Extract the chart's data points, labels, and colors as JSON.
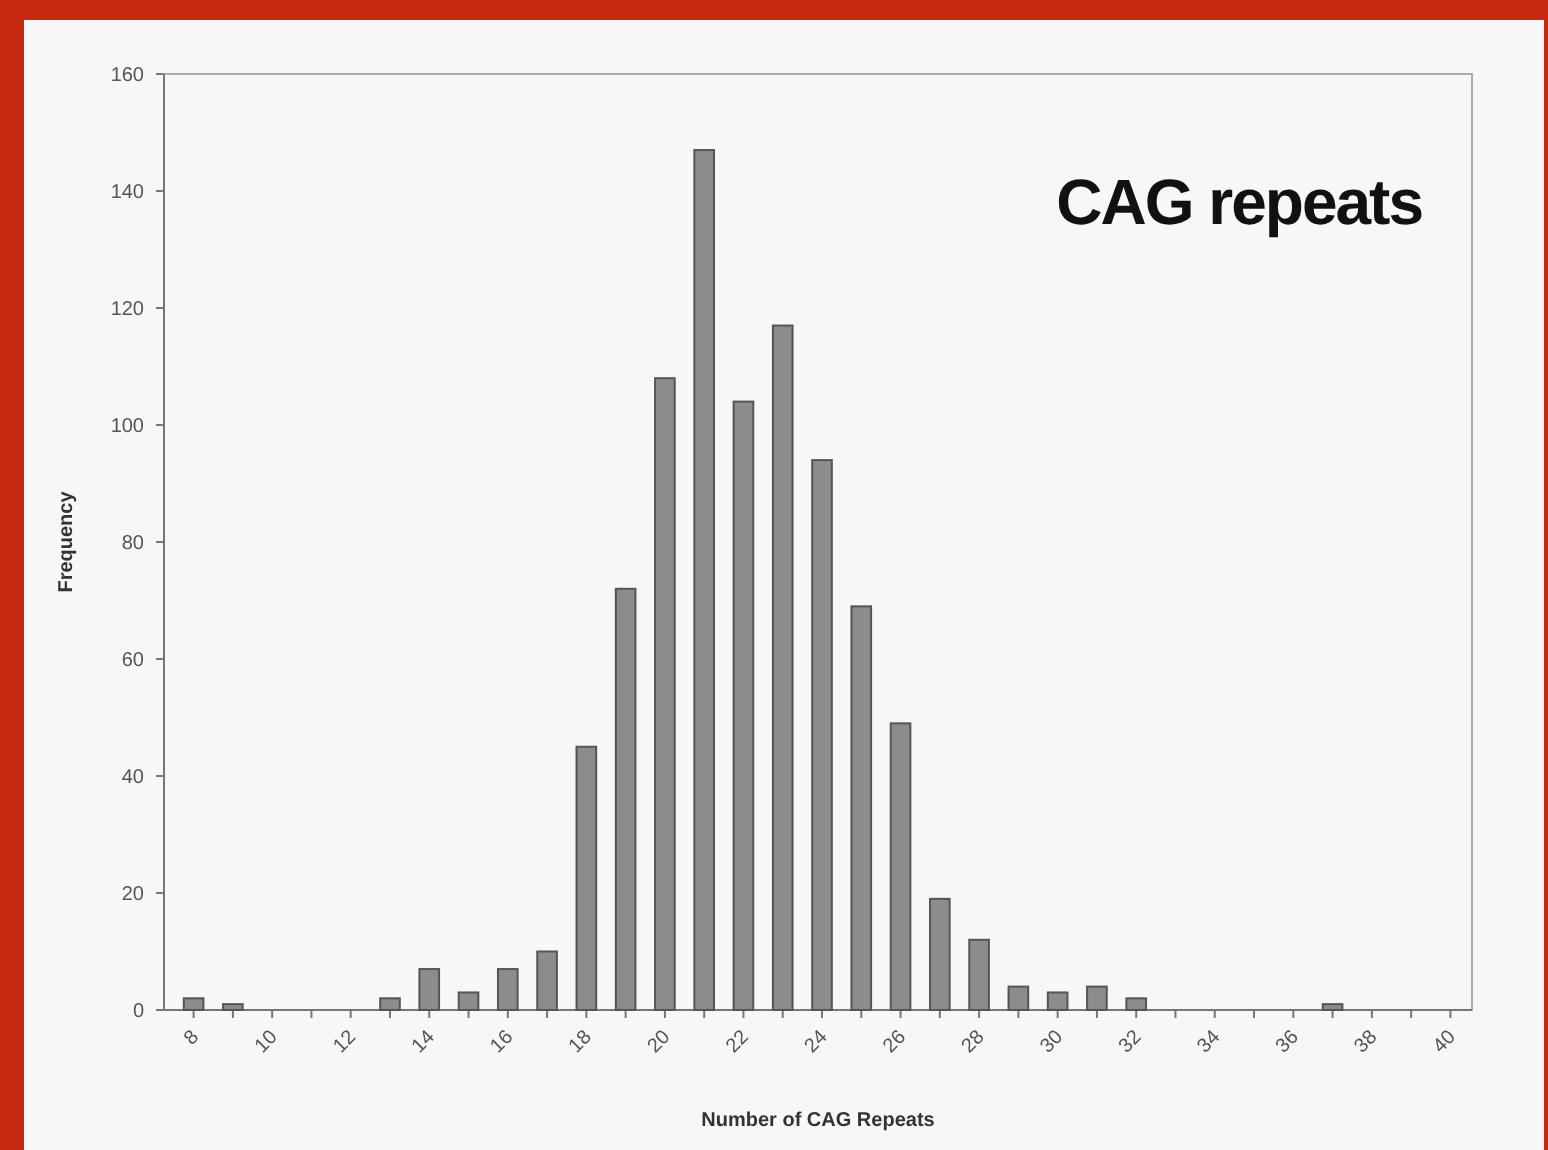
{
  "chart_data": {
    "type": "bar",
    "title": "CAG repeats",
    "xlabel": "Number of CAG Repeats",
    "ylabel": "Frequency",
    "categories": [
      "8",
      null,
      "10",
      null,
      "12",
      null,
      "14",
      null,
      "16",
      null,
      "18",
      null,
      "20",
      null,
      "22",
      null,
      "24",
      null,
      "26",
      null,
      "28",
      null,
      "30",
      null,
      "32",
      null,
      "34",
      null,
      "36",
      null,
      "38",
      null,
      "40"
    ],
    "values": [
      2,
      1,
      0,
      0,
      0,
      2,
      7,
      3,
      7,
      10,
      45,
      72,
      108,
      147,
      104,
      117,
      94,
      69,
      49,
      19,
      12,
      4,
      3,
      4,
      2,
      0,
      0,
      0,
      0,
      1,
      0,
      0,
      0
    ],
    "color": "#8c8c8c",
    "ylim": [
      0,
      160
    ],
    "yticks": [
      0,
      20,
      40,
      60,
      80,
      100,
      120,
      140,
      160
    ],
    "grid": false
  }
}
